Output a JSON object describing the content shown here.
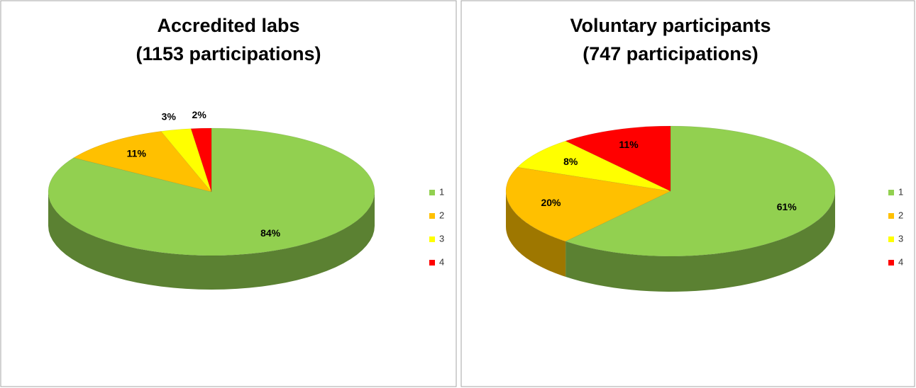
{
  "chart_data": [
    {
      "type": "pie",
      "title": "Accredited labs",
      "subtitle": "(1153 participations)",
      "categories": [
        "1",
        "2",
        "3",
        "4"
      ],
      "values": [
        84,
        11,
        3,
        2
      ],
      "value_labels": [
        "84%",
        "11%",
        "3%",
        "2%"
      ],
      "colors": [
        "#92d050",
        "#ffc000",
        "#ffff00",
        "#ff0000"
      ],
      "legend": "right"
    },
    {
      "type": "pie",
      "title": "Voluntary participants",
      "subtitle": "(747 participations)",
      "categories": [
        "1",
        "2",
        "3",
        "4"
      ],
      "values": [
        61,
        20,
        8,
        11
      ],
      "value_labels": [
        "61%",
        "20%",
        "8%",
        "11%"
      ],
      "colors": [
        "#92d050",
        "#ffc000",
        "#ffff00",
        "#ff0000"
      ],
      "legend": "right"
    }
  ]
}
